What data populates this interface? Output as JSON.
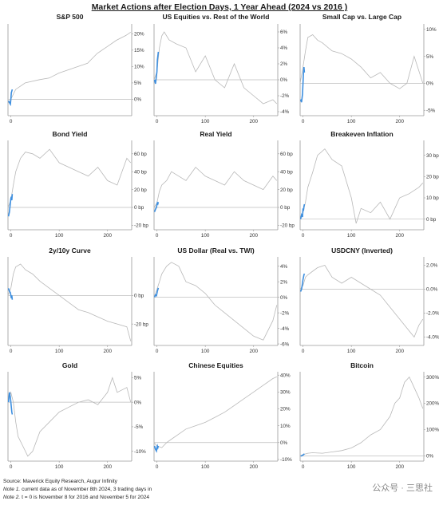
{
  "title": "Market Actions after Election Days, 1 Year Ahead (2024 vs 2016 )",
  "footer": {
    "source": "Source: Maverick Equity Research, Augur Infinity",
    "note1_label": "Note 1.",
    "note1_text": "current data as of November 8th 2024, 3 trading days in",
    "note2_label": "Note 2.",
    "note2_text": "t = 0 is November 8 for 2016 and November 5 for 2024"
  },
  "watermark": "公众号 · 三思社",
  "colors": {
    "series_2016": "#b8b8b8",
    "series_2024": "#3d8fe0",
    "zero_line": "#bdbdbd",
    "axis": "#9a9a9a"
  },
  "chart_data": [
    {
      "type": "line",
      "title": "S&P 500",
      "ylim": [
        -0.05,
        0.23
      ],
      "y_ticks": [
        0,
        0.05,
        0.1,
        0.15,
        0.2
      ],
      "y_tick_labels": [
        "0%",
        "5%",
        "10%",
        "15%",
        "20%"
      ],
      "x_ticks": [
        0
      ],
      "x_tick_labels": [
        "0"
      ],
      "xlim": [
        -6,
        252
      ],
      "series_2016": {
        "x": [
          -6,
          -3,
          0,
          10,
          30,
          60,
          80,
          100,
          120,
          140,
          160,
          180,
          200,
          220,
          240,
          250
        ],
        "y": [
          -0.01,
          -0.01,
          0.0,
          0.03,
          0.05,
          0.06,
          0.065,
          0.08,
          0.09,
          0.1,
          0.11,
          0.14,
          0.16,
          0.18,
          0.195,
          0.205
        ]
      },
      "series_2024": {
        "x": [
          -5,
          -3,
          -1,
          0,
          1,
          2,
          3
        ],
        "y": [
          -0.005,
          -0.01,
          -0.015,
          0.0,
          0.02,
          0.025,
          0.03
        ]
      }
    },
    {
      "type": "line",
      "title": "US Equities vs. Rest of the World",
      "ylim": [
        -0.045,
        0.07
      ],
      "y_ticks": [
        -0.04,
        -0.02,
        0,
        0.02,
        0.04,
        0.06
      ],
      "y_tick_labels": [
        "-4%",
        "-2%",
        "0%",
        "2%",
        "4%",
        "6%"
      ],
      "x_ticks": [
        0,
        100,
        200
      ],
      "x_tick_labels": [
        "0",
        "100",
        "200"
      ],
      "xlim": [
        -6,
        250
      ],
      "series_2016": {
        "x": [
          -6,
          0,
          5,
          10,
          15,
          25,
          40,
          60,
          80,
          100,
          120,
          140,
          160,
          180,
          200,
          220,
          240,
          248
        ],
        "y": [
          0.0,
          0.01,
          0.04,
          0.055,
          0.06,
          0.05,
          0.045,
          0.04,
          0.01,
          0.03,
          0.0,
          -0.01,
          0.02,
          -0.01,
          -0.02,
          -0.03,
          -0.025,
          -0.03
        ]
      },
      "series_2024": {
        "x": [
          -5,
          -3,
          -1,
          0,
          1,
          2,
          3
        ],
        "y": [
          0.0,
          -0.005,
          0.005,
          0.01,
          0.025,
          0.03,
          0.035
        ]
      }
    },
    {
      "type": "line",
      "title": "Small Cap vs. Large Cap",
      "ylim": [
        -0.06,
        0.11
      ],
      "y_ticks": [
        -0.05,
        0,
        0.05,
        0.1
      ],
      "y_tick_labels": [
        "-5%",
        "0%",
        "5%",
        "10%"
      ],
      "x_ticks": [
        0,
        100,
        200
      ],
      "x_tick_labels": [
        "0",
        "100",
        "200"
      ],
      "xlim": [
        -6,
        250
      ],
      "series_2016": {
        "x": [
          -6,
          0,
          5,
          10,
          20,
          30,
          40,
          60,
          80,
          100,
          120,
          140,
          160,
          180,
          200,
          215,
          230,
          248
        ],
        "y": [
          0.0,
          0.03,
          0.06,
          0.085,
          0.09,
          0.08,
          0.075,
          0.06,
          0.055,
          0.045,
          0.03,
          0.01,
          0.02,
          0.0,
          -0.01,
          0.0,
          0.05,
          0.0
        ]
      },
      "series_2024": {
        "x": [
          -5,
          -3,
          -1,
          0,
          1,
          2,
          3
        ],
        "y": [
          -0.03,
          -0.035,
          -0.02,
          0.0,
          0.02,
          0.03,
          0.02
        ]
      }
    },
    {
      "type": "line",
      "title": "Bond Yield",
      "ylim": [
        -25,
        75
      ],
      "y_ticks": [
        -20,
        0,
        20,
        40,
        60
      ],
      "y_tick_labels": [
        "-20 bp",
        "0 bp",
        "20 bp",
        "40 bp",
        "60 bp"
      ],
      "x_ticks": [
        0,
        100,
        200
      ],
      "x_tick_labels": [
        "0",
        "100",
        "200"
      ],
      "xlim": [
        -6,
        250
      ],
      "series_2016": {
        "x": [
          -6,
          0,
          5,
          10,
          20,
          30,
          45,
          60,
          80,
          100,
          120,
          140,
          160,
          180,
          200,
          220,
          240,
          248
        ],
        "y": [
          0,
          8,
          25,
          40,
          55,
          62,
          60,
          55,
          65,
          50,
          45,
          40,
          35,
          45,
          30,
          25,
          55,
          50
        ]
      },
      "series_2024": {
        "x": [
          -5,
          -3,
          -1,
          0,
          1,
          2,
          3
        ],
        "y": [
          -10,
          -5,
          5,
          10,
          12,
          8,
          15
        ]
      }
    },
    {
      "type": "line",
      "title": "Real Yield",
      "ylim": [
        -25,
        75
      ],
      "y_ticks": [
        -20,
        0,
        20,
        40,
        60
      ],
      "y_tick_labels": [
        "-20 bp",
        "0 bp",
        "20 bp",
        "40 bp",
        "60 bp"
      ],
      "x_ticks": [
        0,
        100,
        200
      ],
      "x_tick_labels": [
        "0",
        "100",
        "200"
      ],
      "xlim": [
        -6,
        250
      ],
      "series_2016": {
        "x": [
          -6,
          0,
          5,
          10,
          20,
          30,
          45,
          60,
          80,
          100,
          120,
          140,
          160,
          180,
          200,
          220,
          240,
          248
        ],
        "y": [
          0,
          5,
          18,
          25,
          30,
          40,
          35,
          30,
          45,
          35,
          30,
          25,
          40,
          30,
          25,
          20,
          35,
          30
        ]
      },
      "series_2024": {
        "x": [
          -5,
          -3,
          -1,
          0,
          1,
          2,
          3
        ],
        "y": [
          -5,
          -2,
          0,
          3,
          5,
          4,
          6
        ]
      }
    },
    {
      "type": "line",
      "title": "Breakeven Inflation",
      "ylim": [
        -5,
        37
      ],
      "y_ticks": [
        0,
        10,
        20,
        30
      ],
      "y_tick_labels": [
        "0 bp",
        "10 bp",
        "20 bp",
        "30 bp"
      ],
      "x_ticks": [
        0,
        100,
        200
      ],
      "x_tick_labels": [
        "0",
        "100",
        "200"
      ],
      "xlim": [
        -6,
        250
      ],
      "series_2016": {
        "x": [
          -6,
          0,
          5,
          10,
          20,
          30,
          45,
          60,
          80,
          100,
          110,
          120,
          140,
          160,
          180,
          200,
          220,
          240,
          248
        ],
        "y": [
          0,
          3,
          8,
          15,
          22,
          30,
          33,
          28,
          25,
          10,
          -2,
          5,
          3,
          8,
          0,
          10,
          12,
          15,
          17
        ]
      },
      "series_2024": {
        "x": [
          -5,
          -3,
          -1,
          0,
          1,
          2,
          3
        ],
        "y": [
          0,
          2,
          1,
          5,
          4,
          6,
          7
        ]
      }
    },
    {
      "type": "line",
      "title": "2y/10y Curve",
      "ylim": [
        -35,
        27
      ],
      "y_ticks": [
        -20,
        0
      ],
      "y_tick_labels": [
        "-20 bp",
        "0 bp"
      ],
      "x_ticks": [
        0,
        100,
        200
      ],
      "x_tick_labels": [
        "0",
        "100",
        "200"
      ],
      "xlim": [
        -6,
        250
      ],
      "series_2016": {
        "x": [
          -6,
          0,
          5,
          10,
          20,
          30,
          45,
          60,
          80,
          100,
          120,
          140,
          160,
          180,
          200,
          220,
          240,
          248
        ],
        "y": [
          0,
          5,
          15,
          20,
          22,
          18,
          15,
          10,
          5,
          0,
          -5,
          -10,
          -12,
          -15,
          -18,
          -20,
          -22,
          -32
        ]
      },
      "series_2024": {
        "x": [
          -5,
          -3,
          -1,
          0,
          1,
          2,
          3
        ],
        "y": [
          5,
          3,
          2,
          0,
          -2,
          0,
          -3
        ]
      }
    },
    {
      "type": "line",
      "title": "US Dollar (Real vs. TWI)",
      "ylim": [
        -0.062,
        0.052
      ],
      "y_ticks": [
        -0.06,
        -0.04,
        -0.02,
        0,
        0.02,
        0.04
      ],
      "y_tick_labels": [
        "-6%",
        "-4%",
        "-2%",
        "0%",
        "2%",
        "4%"
      ],
      "x_ticks": [
        0,
        100,
        200
      ],
      "x_tick_labels": [
        "0",
        "100",
        "200"
      ],
      "xlim": [
        -6,
        250
      ],
      "series_2016": {
        "x": [
          -6,
          0,
          5,
          10,
          20,
          30,
          45,
          60,
          80,
          100,
          120,
          140,
          160,
          180,
          200,
          220,
          240,
          248
        ],
        "y": [
          0,
          0.01,
          0.02,
          0.03,
          0.04,
          0.045,
          0.04,
          0.02,
          0.015,
          0.005,
          -0.01,
          -0.02,
          -0.03,
          -0.04,
          -0.05,
          -0.055,
          -0.03,
          -0.01
        ]
      },
      "series_2024": {
        "x": [
          -5,
          -3,
          -1,
          0,
          1,
          2,
          3
        ],
        "y": [
          0,
          0.003,
          0.002,
          0.005,
          0.008,
          0.01,
          0.012
        ]
      }
    },
    {
      "type": "line",
      "title": "USDCNY (Inverted)",
      "ylim": [
        -0.047,
        0.027
      ],
      "y_ticks": [
        -0.04,
        -0.02,
        0,
        0.02
      ],
      "y_tick_labels": [
        "-4.0%",
        "-2.0%",
        "0.0%",
        "2.0%"
      ],
      "x_ticks": [
        0,
        100,
        200
      ],
      "x_tick_labels": [
        "0",
        "100",
        "200"
      ],
      "xlim": [
        -6,
        250
      ],
      "series_2016": {
        "x": [
          -6,
          0,
          5,
          10,
          20,
          30,
          45,
          60,
          80,
          100,
          120,
          140,
          160,
          180,
          200,
          220,
          230,
          240,
          248
        ],
        "y": [
          0,
          0.003,
          0.01,
          0.012,
          0.015,
          0.018,
          0.02,
          0.01,
          0.005,
          0.01,
          0.005,
          0.0,
          -0.005,
          -0.015,
          -0.025,
          -0.035,
          -0.04,
          -0.03,
          -0.025
        ]
      },
      "series_2024": {
        "x": [
          -5,
          -3,
          -1,
          0,
          1,
          2,
          3
        ],
        "y": [
          -0.002,
          0.0,
          0.005,
          0.008,
          0.01,
          0.012,
          0.013
        ]
      }
    },
    {
      "type": "line",
      "title": "Gold",
      "ylim": [
        -0.12,
        0.062
      ],
      "y_ticks": [
        -0.1,
        -0.05,
        0,
        0.05
      ],
      "y_tick_labels": [
        "-10%",
        "-5%",
        "0%",
        "5%"
      ],
      "x_ticks": [
        0,
        100,
        200
      ],
      "x_tick_labels": [
        "0",
        "100",
        "200"
      ],
      "xlim": [
        -6,
        250
      ],
      "series_2016": {
        "x": [
          -6,
          0,
          5,
          10,
          15,
          25,
          35,
          45,
          60,
          80,
          100,
          120,
          140,
          160,
          180,
          200,
          210,
          220,
          240,
          248
        ],
        "y": [
          0,
          0.02,
          0.0,
          -0.04,
          -0.07,
          -0.09,
          -0.11,
          -0.1,
          -0.06,
          -0.04,
          -0.02,
          -0.01,
          0.0,
          0.005,
          -0.005,
          0.02,
          0.05,
          0.02,
          0.03,
          0.0
        ]
      },
      "series_2024": {
        "x": [
          -5,
          -3,
          -1,
          0,
          1,
          2,
          3
        ],
        "y": [
          0.0,
          0.02,
          0.01,
          0.0,
          -0.01,
          -0.02,
          -0.025
        ]
      }
    },
    {
      "type": "line",
      "title": "Chinese Equities",
      "ylim": [
        -0.11,
        0.42
      ],
      "y_ticks": [
        -0.1,
        0,
        0.1,
        0.2,
        0.3,
        0.4
      ],
      "y_tick_labels": [
        "-10%",
        "0%",
        "10%",
        "20%",
        "30%",
        "40%"
      ],
      "x_ticks": [
        0,
        100,
        200
      ],
      "x_tick_labels": [
        "0",
        "100",
        "200"
      ],
      "xlim": [
        -6,
        250
      ],
      "series_2016": {
        "x": [
          -6,
          0,
          10,
          20,
          30,
          45,
          60,
          80,
          100,
          120,
          140,
          160,
          180,
          200,
          220,
          240,
          248
        ],
        "y": [
          0,
          -0.02,
          -0.03,
          0.0,
          0.02,
          0.05,
          0.08,
          0.1,
          0.12,
          0.15,
          0.18,
          0.22,
          0.26,
          0.3,
          0.34,
          0.38,
          0.39
        ]
      },
      "series_2024": {
        "x": [
          -5,
          -3,
          -1,
          0,
          1,
          2,
          3
        ],
        "y": [
          -0.02,
          -0.04,
          -0.05,
          -0.03,
          -0.02,
          -0.03,
          -0.02
        ]
      }
    },
    {
      "type": "line",
      "title": "Bitcoin",
      "ylim": [
        -0.2,
        3.2
      ],
      "y_ticks": [
        0,
        1,
        2,
        3
      ],
      "y_tick_labels": [
        "0%",
        "100%",
        "200%",
        "300%"
      ],
      "x_ticks": [
        0,
        100,
        200
      ],
      "x_tick_labels": [
        "0",
        "100",
        "200"
      ],
      "xlim": [
        -6,
        250
      ],
      "series_2016": {
        "x": [
          -6,
          0,
          10,
          20,
          40,
          60,
          80,
          100,
          120,
          140,
          160,
          180,
          190,
          200,
          210,
          220,
          230,
          240,
          248
        ],
        "y": [
          0,
          0.05,
          0.1,
          0.12,
          0.1,
          0.15,
          0.2,
          0.3,
          0.5,
          0.8,
          1.0,
          1.5,
          2.0,
          2.2,
          2.8,
          3.0,
          2.6,
          2.2,
          1.8
        ]
      },
      "series_2024": {
        "x": [
          -5,
          -3,
          -1,
          0,
          1,
          2,
          3
        ],
        "y": [
          0,
          0.0,
          0.02,
          0.03,
          0.05,
          0.06,
          0.08
        ]
      }
    }
  ]
}
